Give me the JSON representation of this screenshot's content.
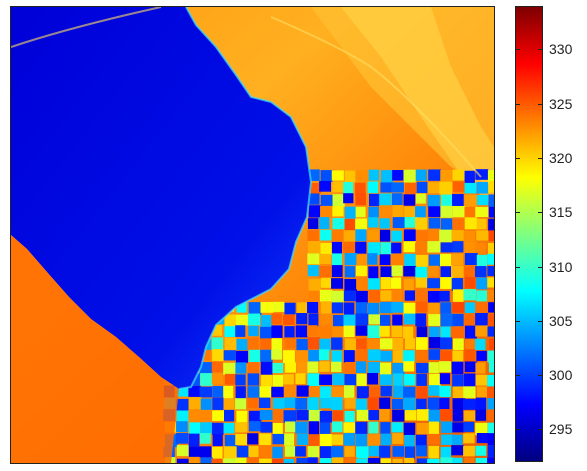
{
  "chart_data": {
    "type": "heatmap",
    "title": "",
    "xlabel": "",
    "ylabel": "",
    "grid": false,
    "colormap": "jet",
    "colorbar": {
      "min": 292,
      "max": 334,
      "ticks": [
        295,
        300,
        305,
        310,
        315,
        320,
        325,
        330
      ],
      "tick_labels": [
        "295",
        "300",
        "305",
        "310",
        "315",
        "320",
        "325",
        "330"
      ],
      "position": "right"
    },
    "regions": [
      {
        "name": "lake",
        "value": 294
      },
      {
        "name": "upland-north",
        "value": 323
      },
      {
        "name": "upland-ridge",
        "value": 318
      },
      {
        "name": "western-shore",
        "value": 324
      },
      {
        "name": "agricultural-fields",
        "value_range": [
          296,
          326
        ]
      }
    ]
  },
  "colors": {
    "jet_stops": [
      "#00007f",
      "#0000ff",
      "#007fff",
      "#00ffff",
      "#7fff7f",
      "#ffff00",
      "#ff7f00",
      "#ff0000",
      "#7f0000"
    ]
  }
}
